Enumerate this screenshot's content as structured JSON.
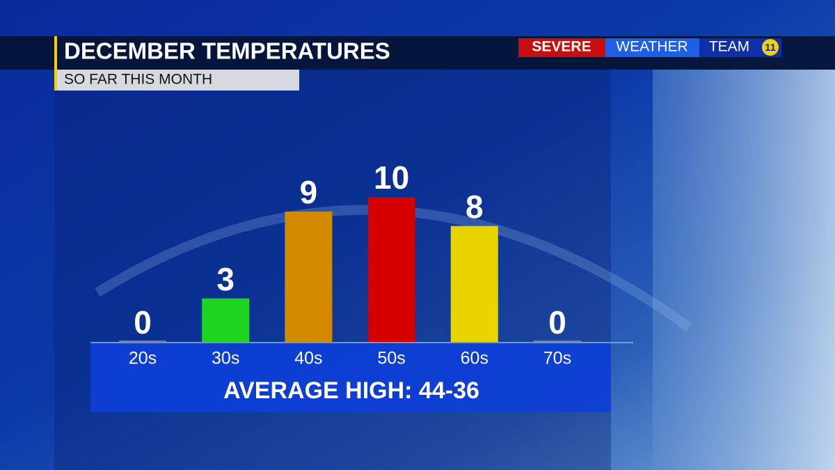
{
  "chart_data": {
    "type": "bar",
    "title": "DECEMBER TEMPERATURES",
    "subtitle": "SO FAR THIS MONTH",
    "categories": [
      "20s",
      "30s",
      "40s",
      "50s",
      "60s",
      "70s"
    ],
    "values": [
      0,
      3,
      9,
      10,
      8,
      0
    ],
    "colors": [
      "#9a9a9a",
      "#1fd41f",
      "#d48a00",
      "#d40000",
      "#e8d400",
      "#9a9a9a"
    ],
    "footer": "AVERAGE HIGH:  44-36",
    "logo": {
      "severe": "SEVERE",
      "weather": "WEATHER",
      "team": "TEAM",
      "channel": "11"
    }
  }
}
